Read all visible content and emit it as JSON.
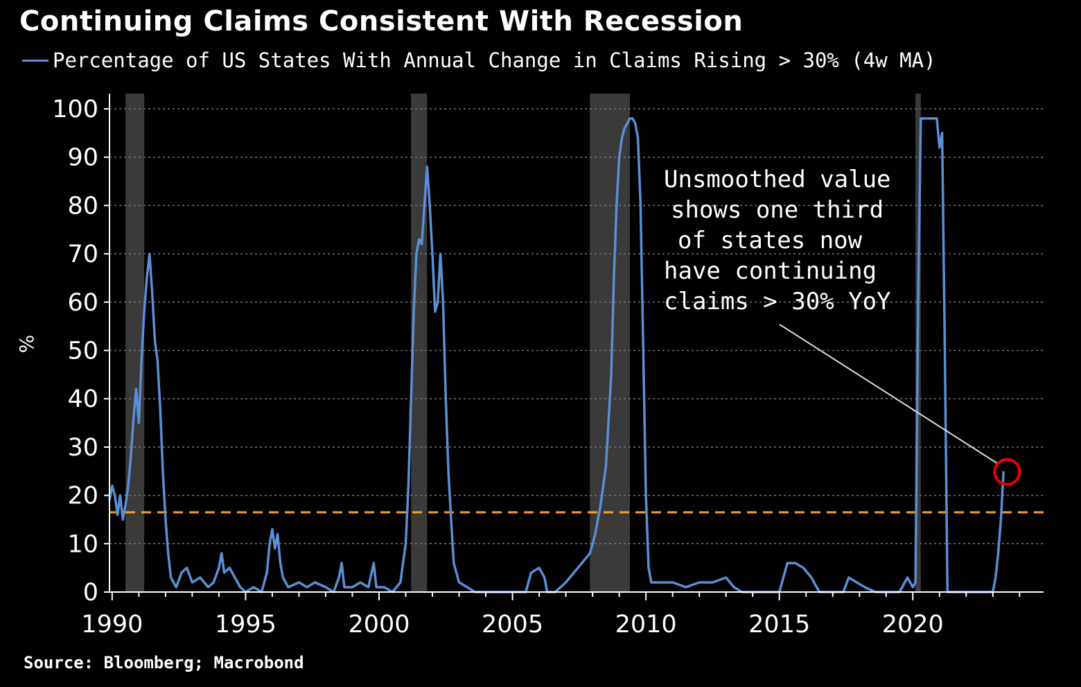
{
  "title": "Continuing Claims Consistent With Recession",
  "legend": {
    "label": "Percentage of US States With Annual Change in Claims Rising > 30% (4w MA)",
    "color": "#5b8fd6"
  },
  "source": "Source: Bloomberg; Macrobond",
  "annotation": {
    "lines": [
      "Unsmoothed value",
      "shows one third",
      "of states now",
      "have continuing",
      "claims > 30% YoY"
    ],
    "target": [
      2023.3,
      25
    ]
  },
  "chart_data": {
    "type": "line",
    "title": "Continuing Claims Consistent With Recession",
    "xlabel": "",
    "ylabel": "%",
    "xlim": [
      1989.9,
      2024.9
    ],
    "ylim": [
      0,
      100
    ],
    "xticks": [
      "1990",
      "1995",
      "2000",
      "2005",
      "2010",
      "2015",
      "2020"
    ],
    "yticks": [
      "0",
      "10",
      "20",
      "30",
      "40",
      "50",
      "60",
      "70",
      "80",
      "90",
      "100"
    ],
    "reference_line": {
      "value": 16.5,
      "color": "#f5a623",
      "style": "dashed"
    },
    "recessions": [
      [
        1990.5,
        1991.2
      ],
      [
        2001.2,
        2001.8
      ],
      [
        2007.9,
        2009.4
      ],
      [
        2020.1,
        2020.3
      ]
    ],
    "series": [
      {
        "name": "Percentage of US States With Annual Change in Claims Rising > 30% (4w MA)",
        "color": "#5b8fd6",
        "points": [
          [
            1989.9,
            19
          ],
          [
            1990.0,
            22
          ],
          [
            1990.1,
            20
          ],
          [
            1990.2,
            16
          ],
          [
            1990.3,
            20
          ],
          [
            1990.4,
            15
          ],
          [
            1990.5,
            18
          ],
          [
            1990.6,
            22
          ],
          [
            1990.7,
            28
          ],
          [
            1990.8,
            36
          ],
          [
            1990.9,
            42
          ],
          [
            1991.0,
            35
          ],
          [
            1991.1,
            48
          ],
          [
            1991.2,
            58
          ],
          [
            1991.3,
            65
          ],
          [
            1991.4,
            70
          ],
          [
            1991.5,
            62
          ],
          [
            1991.6,
            52
          ],
          [
            1991.7,
            48
          ],
          [
            1991.8,
            38
          ],
          [
            1991.9,
            25
          ],
          [
            1992.0,
            15
          ],
          [
            1992.1,
            8
          ],
          [
            1992.2,
            3
          ],
          [
            1992.4,
            1
          ],
          [
            1992.6,
            4
          ],
          [
            1992.8,
            5
          ],
          [
            1993.0,
            2
          ],
          [
            1993.3,
            3
          ],
          [
            1993.6,
            1
          ],
          [
            1993.8,
            2
          ],
          [
            1994.0,
            5
          ],
          [
            1994.1,
            8
          ],
          [
            1994.2,
            4
          ],
          [
            1994.4,
            5
          ],
          [
            1994.6,
            3
          ],
          [
            1994.8,
            1
          ],
          [
            1995.0,
            0
          ],
          [
            1995.3,
            1
          ],
          [
            1995.6,
            0
          ],
          [
            1995.8,
            4
          ],
          [
            1995.9,
            10
          ],
          [
            1996.0,
            13
          ],
          [
            1996.1,
            9
          ],
          [
            1996.2,
            12
          ],
          [
            1996.3,
            6
          ],
          [
            1996.4,
            3
          ],
          [
            1996.6,
            1
          ],
          [
            1997.0,
            2
          ],
          [
            1997.3,
            1
          ],
          [
            1997.6,
            2
          ],
          [
            1998.0,
            1
          ],
          [
            1998.3,
            0
          ],
          [
            1998.5,
            3
          ],
          [
            1998.6,
            6
          ],
          [
            1998.7,
            1
          ],
          [
            1999.0,
            1
          ],
          [
            1999.3,
            2
          ],
          [
            1999.6,
            1
          ],
          [
            1999.8,
            6
          ],
          [
            1999.9,
            1
          ],
          [
            2000.2,
            1
          ],
          [
            2000.5,
            0
          ],
          [
            2000.8,
            2
          ],
          [
            2001.0,
            10
          ],
          [
            2001.1,
            22
          ],
          [
            2001.2,
            40
          ],
          [
            2001.3,
            58
          ],
          [
            2001.4,
            70
          ],
          [
            2001.5,
            73
          ],
          [
            2001.6,
            72
          ],
          [
            2001.7,
            80
          ],
          [
            2001.8,
            88
          ],
          [
            2001.9,
            80
          ],
          [
            2002.0,
            70
          ],
          [
            2002.1,
            58
          ],
          [
            2002.2,
            60
          ],
          [
            2002.3,
            70
          ],
          [
            2002.4,
            60
          ],
          [
            2002.5,
            40
          ],
          [
            2002.6,
            25
          ],
          [
            2002.7,
            15
          ],
          [
            2002.8,
            6
          ],
          [
            2003.0,
            2
          ],
          [
            2003.3,
            1
          ],
          [
            2003.6,
            0
          ],
          [
            2004.0,
            0
          ],
          [
            2004.5,
            0
          ],
          [
            2005.0,
            0
          ],
          [
            2005.5,
            0
          ],
          [
            2005.7,
            4
          ],
          [
            2006.0,
            5
          ],
          [
            2006.2,
            3
          ],
          [
            2006.3,
            0
          ],
          [
            2006.6,
            0
          ],
          [
            2007.0,
            2
          ],
          [
            2007.3,
            4
          ],
          [
            2007.6,
            6
          ],
          [
            2007.9,
            8
          ],
          [
            2008.1,
            12
          ],
          [
            2008.3,
            18
          ],
          [
            2008.5,
            26
          ],
          [
            2008.7,
            45
          ],
          [
            2008.8,
            65
          ],
          [
            2008.9,
            80
          ],
          [
            2009.0,
            90
          ],
          [
            2009.1,
            94
          ],
          [
            2009.2,
            96
          ],
          [
            2009.3,
            97
          ],
          [
            2009.4,
            98
          ],
          [
            2009.5,
            98
          ],
          [
            2009.6,
            97
          ],
          [
            2009.7,
            94
          ],
          [
            2009.8,
            80
          ],
          [
            2009.9,
            50
          ],
          [
            2010.0,
            20
          ],
          [
            2010.1,
            5
          ],
          [
            2010.2,
            2
          ],
          [
            2011.0,
            2
          ],
          [
            2011.5,
            1
          ],
          [
            2012.0,
            2
          ],
          [
            2012.5,
            2
          ],
          [
            2013.0,
            3
          ],
          [
            2013.3,
            1
          ],
          [
            2013.6,
            0
          ],
          [
            2014.5,
            0
          ],
          [
            2015.0,
            0
          ],
          [
            2015.3,
            6
          ],
          [
            2015.6,
            6
          ],
          [
            2015.9,
            5
          ],
          [
            2016.2,
            3
          ],
          [
            2016.5,
            0
          ],
          [
            2017.0,
            0
          ],
          [
            2017.4,
            0
          ],
          [
            2017.6,
            3
          ],
          [
            2017.9,
            2
          ],
          [
            2018.2,
            1
          ],
          [
            2018.6,
            0
          ],
          [
            2019.5,
            0
          ],
          [
            2019.8,
            3
          ],
          [
            2020.0,
            1
          ],
          [
            2020.1,
            2
          ],
          [
            2020.2,
            60
          ],
          [
            2020.3,
            98
          ],
          [
            2020.6,
            98
          ],
          [
            2020.9,
            98
          ],
          [
            2021.0,
            92
          ],
          [
            2021.1,
            95
          ],
          [
            2021.2,
            50
          ],
          [
            2021.3,
            0
          ],
          [
            2021.6,
            0
          ],
          [
            2022.5,
            0
          ],
          [
            2023.0,
            0
          ],
          [
            2023.1,
            3
          ],
          [
            2023.2,
            8
          ],
          [
            2023.3,
            15
          ],
          [
            2023.4,
            25
          ]
        ]
      }
    ]
  }
}
